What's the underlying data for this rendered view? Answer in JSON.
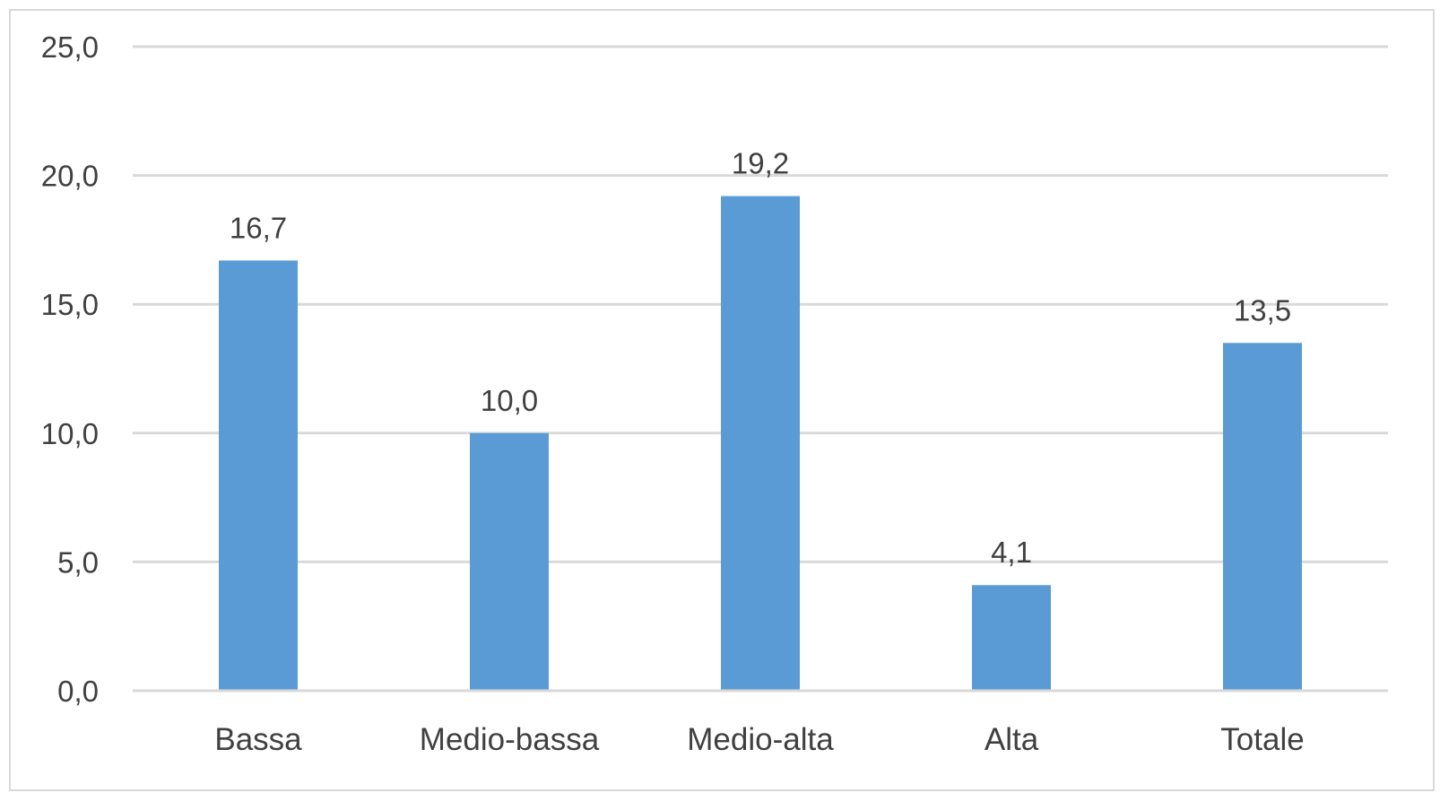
{
  "chart_data": {
    "type": "bar",
    "categories": [
      "Bassa",
      "Medio-bassa",
      "Medio-alta",
      "Alta",
      "Totale"
    ],
    "values": [
      16.7,
      10.0,
      19.2,
      4.1,
      13.5
    ],
    "data_labels": [
      "16,7",
      "10,0",
      "19,2",
      "4,1",
      "13,5"
    ],
    "yticks": [
      "0,0",
      "5,0",
      "10,0",
      "15,0",
      "20,0",
      "25,0"
    ],
    "ytick_values": [
      0,
      5,
      10,
      15,
      20,
      25
    ],
    "ylim": [
      0,
      25
    ],
    "title": "",
    "xlabel": "",
    "ylabel": "",
    "grid": true,
    "legend": "none",
    "bar_color": "#5b9bd5",
    "grid_color": "#d9d9d9",
    "text_color": "#404040"
  }
}
